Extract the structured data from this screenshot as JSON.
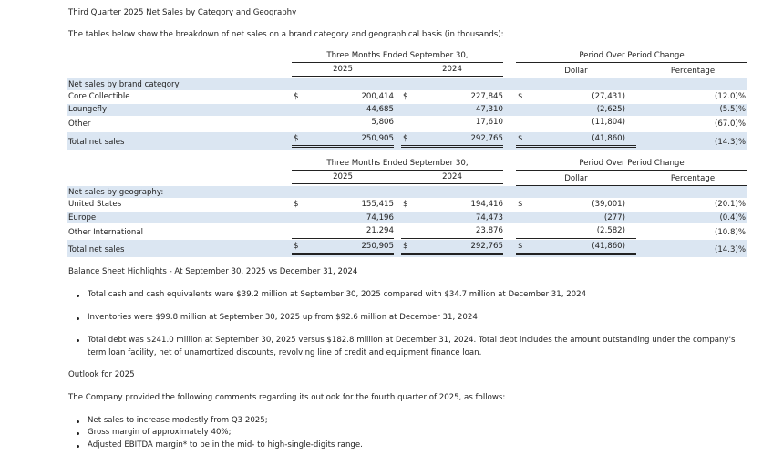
{
  "title": "Third Quarter 2025 Net Sales by Category and Geography",
  "intro": "The tables below show the breakdown of net sales on a brand category and geographical basis (in thousands):",
  "table1": {
    "group_header": "Three Months Ended September 30,",
    "change_header": "Period Over Period Change",
    "col_2025": "2025",
    "col_2024": "2024",
    "col_dollar": "Dollar",
    "col_pct": "Percentage",
    "section_label": "Net sales by brand category:",
    "rows": [
      {
        "label": "Core Collectible",
        "d1": "$",
        "v2025": "200,414",
        "d2": "$",
        "v2024": "227,845",
        "d3": "$",
        "dollar": "(27,431)",
        "pct": "(12.0)%"
      },
      {
        "label": "Loungefly",
        "d1": "",
        "v2025": "44,685",
        "d2": "",
        "v2024": "47,310",
        "d3": "",
        "dollar": "(2,625)",
        "pct": "(5.5)%"
      },
      {
        "label": "Other",
        "d1": "",
        "v2025": "5,806",
        "d2": "",
        "v2024": "17,610",
        "d3": "",
        "dollar": "(11,804)",
        "pct": "(67.0)%"
      },
      {
        "label": "Total net sales",
        "d1": "$",
        "v2025": "250,905",
        "d2": "$",
        "v2024": "292,765",
        "d3": "$",
        "dollar": "(41,860)",
        "pct": "(14.3)%"
      }
    ]
  },
  "table2": {
    "group_header": "Three Months Ended September 30,",
    "change_header": "Period Over Period Change",
    "col_2025": "2025",
    "col_2024": "2024",
    "col_dollar": "Dollar",
    "col_pct": "Percentage",
    "section_label": "Net sales by geography:",
    "rows": [
      {
        "label": "United States",
        "d1": "$",
        "v2025": "155,415",
        "d2": "$",
        "v2024": "194,416",
        "d3": "$",
        "dollar": "(39,001)",
        "pct": "(20.1)%"
      },
      {
        "label": "Europe",
        "d1": "",
        "v2025": "74,196",
        "d2": "",
        "v2024": "74,473",
        "d3": "",
        "dollar": "(277)",
        "pct": "(0.4)%"
      },
      {
        "label": "Other International",
        "d1": "",
        "v2025": "21,294",
        "d2": "",
        "v2024": "23,876",
        "d3": "",
        "dollar": "(2,582)",
        "pct": "(10.8)%"
      },
      {
        "label": "Total net sales",
        "d1": "$",
        "v2025": "250,905",
        "d2": "$",
        "v2024": "292,765",
        "d3": "$",
        "dollar": "(41,860)",
        "pct": "(14.3)%"
      }
    ]
  },
  "balance_heading": "Balance Sheet Highlights - At September 30, 2025 vs December 31, 2024",
  "balance_bullets": [
    "Total cash and cash equivalents were $39.2 million at September 30, 2025 compared with $34.7 million at December 31, 2024",
    "Inventories were $99.8 million at September 30, 2025 up from $92.6 million at December 31, 2024",
    "Total debt was $241.0 million at September 30, 2025 versus $182.8 million at December 31, 2024. Total debt includes the amount outstanding under the company's term loan facility, net of unamortized discounts, revolving line of credit and equipment finance loan."
  ],
  "outlook_heading": "Outlook for 2025",
  "outlook_intro": "The Company provided the following comments regarding its outlook for the fourth quarter of 2025, as follows:",
  "outlook_bullets": [
    "Net sales to increase modestly from Q3 2025;",
    "Gross margin of approximately 40%;",
    "Adjusted EBITDA margin* to be in the mid- to high-single-digits range."
  ]
}
